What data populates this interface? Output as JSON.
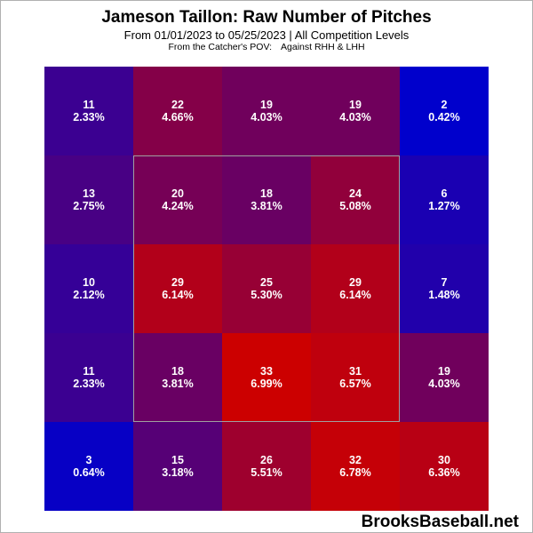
{
  "chart_data": {
    "type": "heatmap",
    "title": "Jameson Taillon: Raw Number of Pitches",
    "subtitle": "From 01/01/2023 to 05/25/2023 | All Competition Levels",
    "subtitle2_left": "From the Catcher's POV:",
    "subtitle2_right": "Against RHH & LHH",
    "rows": 5,
    "cols": 5,
    "counts": [
      [
        11,
        22,
        19,
        19,
        2
      ],
      [
        13,
        20,
        18,
        24,
        6
      ],
      [
        10,
        29,
        25,
        29,
        7
      ],
      [
        11,
        18,
        33,
        31,
        19
      ],
      [
        3,
        15,
        26,
        32,
        30
      ]
    ],
    "percents": [
      [
        "2.33%",
        "4.66%",
        "4.03%",
        "4.03%",
        "0.42%"
      ],
      [
        "2.75%",
        "4.24%",
        "3.81%",
        "5.08%",
        "1.27%"
      ],
      [
        "2.12%",
        "6.14%",
        "5.30%",
        "6.14%",
        "1.48%"
      ],
      [
        "2.33%",
        "3.81%",
        "6.99%",
        "6.57%",
        "4.03%"
      ],
      [
        "0.64%",
        "3.18%",
        "5.51%",
        "6.78%",
        "6.36%"
      ]
    ],
    "color_low": "#0000cc",
    "color_high": "#cc0000",
    "strike_zone": "inner 3x3"
  },
  "watermark": "BrooksBaseball.net"
}
